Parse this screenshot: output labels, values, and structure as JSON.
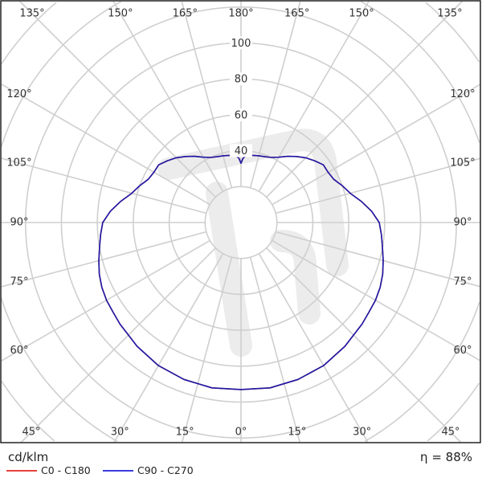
{
  "chart_data": {
    "type": "polar",
    "unit_label": "cd/klm",
    "efficiency_label": "η = 88%",
    "radial_ticks": [
      20,
      40,
      60,
      80,
      100,
      120,
      140,
      160
    ],
    "radial_tick_labels": [
      "40",
      "60",
      "80",
      "100"
    ],
    "angle_labels_top": [
      "135°",
      "150°",
      "165°",
      "180°",
      "165°",
      "150°",
      "135°"
    ],
    "angle_labels_left": [
      "120°",
      "105°",
      "90°",
      "75°",
      "60°"
    ],
    "angle_labels_right": [
      "120°",
      "105°",
      "90°",
      "75°",
      "60°"
    ],
    "angle_labels_bottom": [
      "45°",
      "30°",
      "15°",
      "0°",
      "15°",
      "30°",
      "45°"
    ],
    "grid": true,
    "legend_position": "bottom-left",
    "angles_deg": [
      0,
      10,
      20,
      30,
      40,
      50,
      55,
      60,
      65,
      70,
      75,
      80,
      85,
      90,
      95,
      100,
      105,
      110,
      115,
      120,
      125,
      130,
      135,
      140,
      145,
      150,
      155,
      160,
      165,
      170,
      175,
      178,
      180
    ],
    "series": [
      {
        "name": "C0 - C180",
        "color": "#e8423c",
        "values": [
          93,
          93.5,
          93,
          92,
          90,
          88,
          87,
          86.5,
          85.5,
          84,
          82,
          80,
          78.5,
          77,
          73,
          68,
          63,
          60,
          57,
          56,
          56,
          53.5,
          51,
          48,
          45,
          42,
          40,
          39,
          38.5,
          38,
          37.5,
          36,
          33
        ]
      },
      {
        "name": "C90 - C270",
        "color": "#1a1aa8",
        "values": [
          93,
          93.5,
          93,
          92,
          90,
          88,
          87,
          86.5,
          85.5,
          84,
          82,
          80,
          78.5,
          77,
          73,
          68,
          63,
          60,
          57,
          56,
          56,
          53.5,
          51,
          48,
          45,
          42,
          40,
          39,
          38.5,
          38,
          37.5,
          36,
          33
        ]
      }
    ]
  }
}
